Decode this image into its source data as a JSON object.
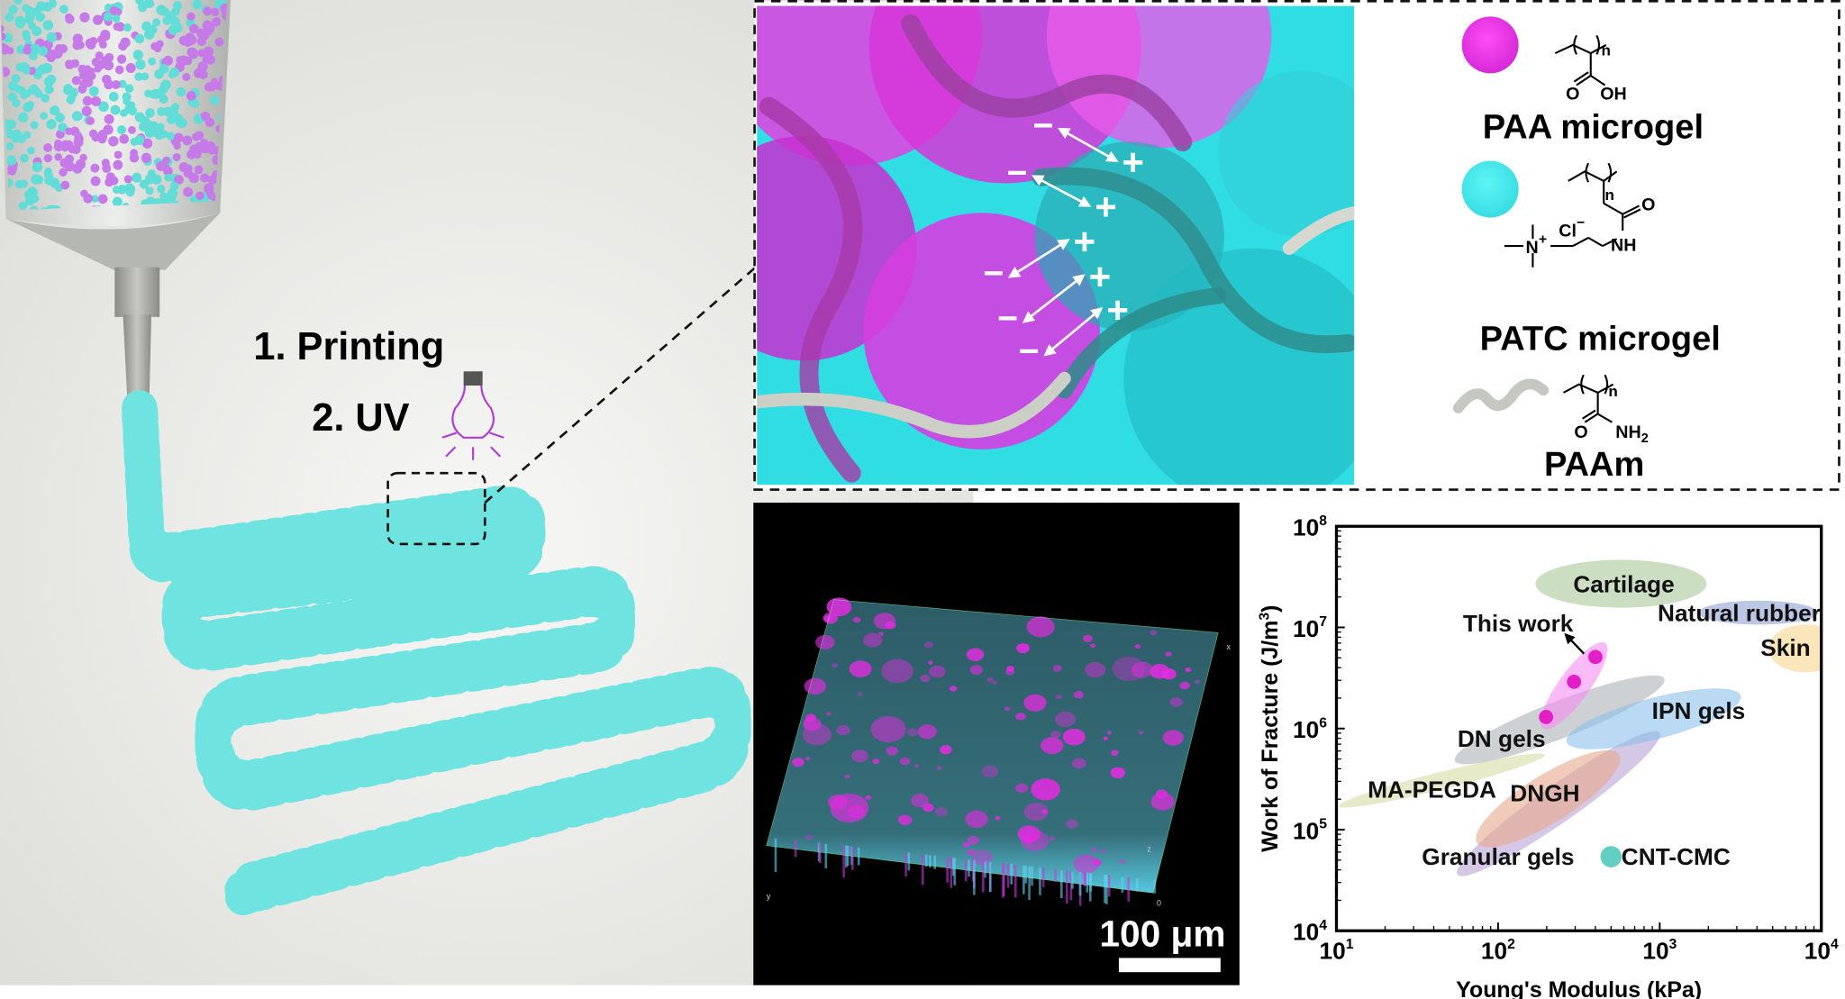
{
  "panel_printing": {
    "step1": "1. Printing",
    "step2": "2. UV",
    "colors": {
      "paa": "#c86ee8",
      "patc": "#5fe3df",
      "nozzle": "#a9aaa4",
      "uv_bulb": "#b23ad6"
    },
    "icons": [
      "syringe-icon",
      "lightbulb-icon"
    ]
  },
  "panel_structure": {
    "charges_negative": [
      "−",
      "−",
      "−",
      "−",
      "−"
    ],
    "charges_positive": [
      "+",
      "+",
      "+",
      "+",
      "+"
    ],
    "legend": {
      "paa_label": "PAA microgel",
      "paa_sub_n": "n",
      "paa_o": "O",
      "paa_oh": "OH",
      "patc_label": "PATC microgel",
      "patc_sub_n": "n",
      "patc_o": "O",
      "patc_nh": "NH",
      "patc_cl": "Cl",
      "patc_cl_charge": "−",
      "patc_n": "N",
      "patc_n_charge": "+",
      "paam_label": "PAAm",
      "paam_sub_n": "n",
      "paam_o": "O",
      "paam_nh2": "NH",
      "paam_nh2_sub": "2"
    },
    "colors": {
      "paa": "#e83cea",
      "patc": "#39e6ea",
      "paam": "#c4c8c0"
    }
  },
  "panel_microscopy": {
    "scale_label": "100 μm",
    "axis_letters": [
      "x",
      "y",
      "z",
      "0"
    ]
  },
  "chart_data": {
    "type": "scatter",
    "xlabel": "Young's Modulus (kPa)",
    "ylabel": "Work of Fracture (J/m³)",
    "ylabel_main": "Work of Fracture (J/m",
    "ylabel_sup": "3",
    "ylabel_end": ")",
    "xscale": "log",
    "yscale": "log",
    "xlim": [
      10,
      10000
    ],
    "ylim": [
      10000,
      100000000
    ],
    "xticks": [
      {
        "base": "10",
        "exp": "1"
      },
      {
        "base": "10",
        "exp": "2"
      },
      {
        "base": "10",
        "exp": "3"
      },
      {
        "base": "10",
        "exp": "4"
      }
    ],
    "yticks": [
      {
        "base": "10",
        "exp": "4"
      },
      {
        "base": "10",
        "exp": "5"
      },
      {
        "base": "10",
        "exp": "6"
      },
      {
        "base": "10",
        "exp": "7"
      },
      {
        "base": "10",
        "exp": "8"
      }
    ],
    "grid": false,
    "regions": [
      {
        "name": "Granular gels",
        "from": [
          56,
          36000
        ],
        "to": [
          1000,
          910000
        ],
        "width_decades": 0.17,
        "color": "#b9a2d6",
        "label_at": [
          100,
          54000
        ]
      },
      {
        "name": "DNGH",
        "from": [
          74,
          74000
        ],
        "to": [
          560,
          550000
        ],
        "width_decades": 0.22,
        "color": "#e7a98a",
        "label_at": [
          195,
          230000
        ]
      },
      {
        "name": "MA-PEGDA",
        "from": [
          10.3,
          170000
        ],
        "to": [
          195,
          550000
        ],
        "width_decades": 0.08,
        "color": "#d7dca4",
        "label_at": [
          39,
          250000
        ]
      },
      {
        "name": "DN gels",
        "from": [
          54,
          480000
        ],
        "to": [
          1070,
          3100000
        ],
        "width_decades": 0.17,
        "color": "#aeb3b6",
        "label_at": [
          105,
          800000
        ]
      },
      {
        "name": "IPN gels",
        "from": [
          265,
          740000
        ],
        "to": [
          3170,
          2100000
        ],
        "width_decades": 0.19,
        "color": "#8cc0ea",
        "label_at": [
          1740,
          1500000
        ]
      },
      {
        "name": "Cartilage",
        "from": [
          170,
          27000000
        ],
        "to": [
          1950,
          27000000
        ],
        "width_decades": 0.22,
        "color": "#a8c89a",
        "label_at": [
          600,
          27000000
        ]
      },
      {
        "name": "Natural rubber",
        "from": [
          1740,
          14000000
        ],
        "to": [
          9550,
          14000000
        ],
        "width_decades": 0.11,
        "color": "#8ea1d2",
        "label_at": [
          3100,
          14000000
        ]
      },
      {
        "name": "Skin",
        "from": [
          4700,
          6200000
        ],
        "to": [
          13500,
          6200000
        ],
        "width_decades": 0.22,
        "color": "#f6d58c",
        "label_at": [
          6000,
          6300000
        ]
      },
      {
        "name": "This work",
        "from": [
          190,
          1000000
        ],
        "to": [
          460,
          7000000
        ],
        "width_decades": 0.14,
        "color": "#f78cf1",
        "label_at": [
          133,
          11000000
        ]
      }
    ],
    "series": [
      {
        "name": "This work",
        "x": [
          198,
          295,
          400
        ],
        "y": [
          1300000,
          2900000,
          5100000
        ],
        "color": "#e21ec6"
      },
      {
        "name": "CNT-CMC",
        "x": [
          500
        ],
        "y": [
          54000
        ],
        "color": "#62cfc2"
      }
    ],
    "annotations": [
      {
        "text": "CNT-CMC",
        "at": [
          1260,
          54000
        ]
      },
      {
        "arrow_from": [
          340,
          5500000
        ],
        "arrow_to": [
          262,
          8500000
        ],
        "target": "This work"
      }
    ]
  }
}
